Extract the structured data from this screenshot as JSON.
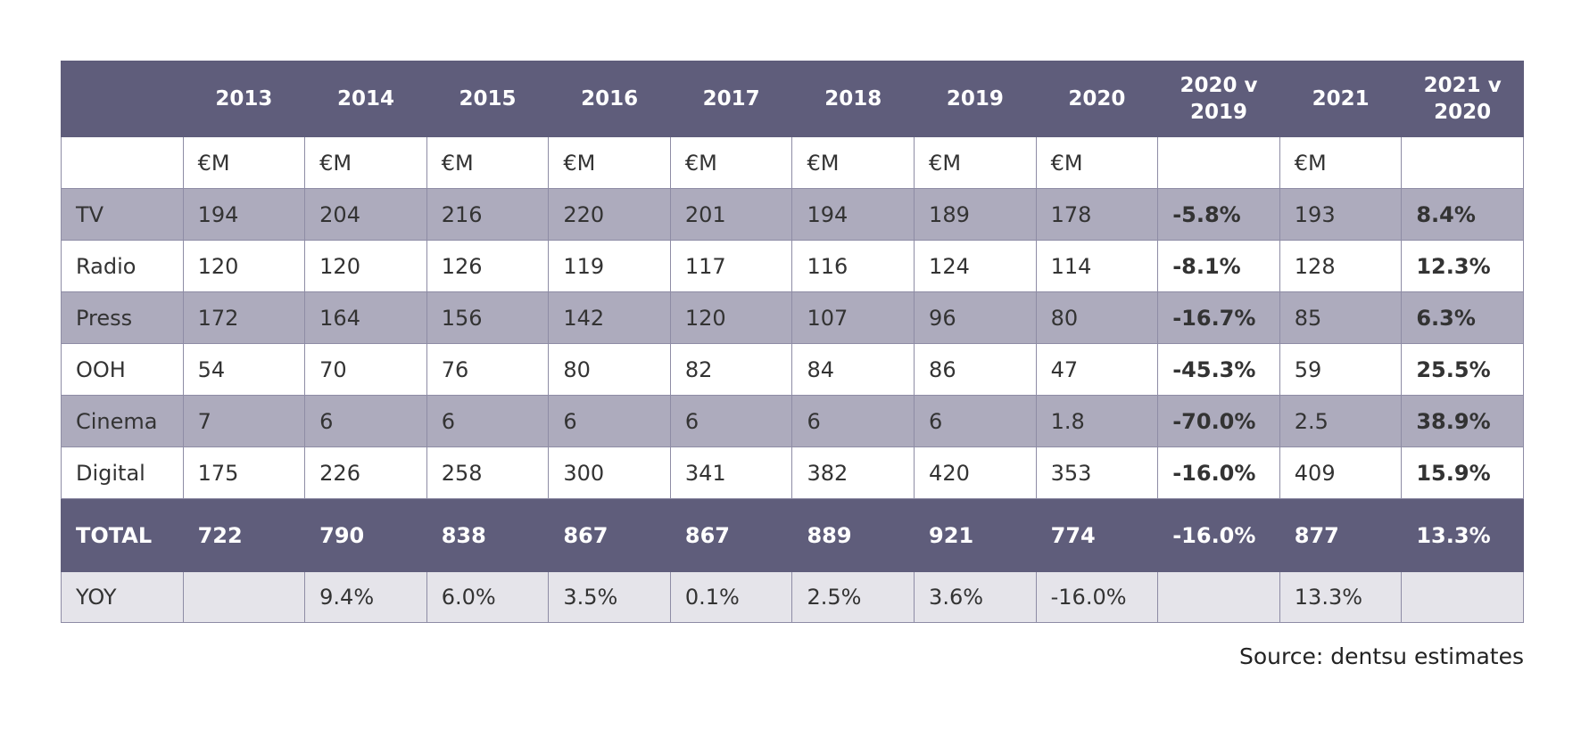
{
  "table": {
    "header": [
      "2013",
      "2014",
      "2015",
      "2016",
      "2017",
      "2018",
      "2019",
      "2020",
      "2020 v 2019",
      "2021",
      "2021 v 2020"
    ],
    "units": [
      "€M",
      "€M",
      "€M",
      "€M",
      "€M",
      "€M",
      "€M",
      "€M",
      null,
      "€M",
      null
    ],
    "rows": [
      {
        "label": "TV",
        "values": [
          "194",
          "204",
          "216",
          "220",
          "201",
          "194",
          "189",
          "178",
          "-5.8%",
          "193",
          "8.4%"
        ]
      },
      {
        "label": "Radio",
        "values": [
          "120",
          "120",
          "126",
          "119",
          "117",
          "116",
          "124",
          "114",
          "-8.1%",
          "128",
          "12.3%"
        ]
      },
      {
        "label": "Press",
        "values": [
          "172",
          "164",
          "156",
          "142",
          "120",
          "107",
          "96",
          "80",
          "-16.7%",
          "85",
          "6.3%"
        ]
      },
      {
        "label": "OOH",
        "values": [
          "54",
          "70",
          "76",
          "80",
          "82",
          "84",
          "86",
          "47",
          "-45.3%",
          "59",
          "25.5%"
        ]
      },
      {
        "label": "Cinema",
        "values": [
          "7",
          "6",
          "6",
          "6",
          "6",
          "6",
          "6",
          "1.8",
          "-70.0%",
          "2.5",
          "38.9%"
        ]
      },
      {
        "label": "Digital",
        "values": [
          "175",
          "226",
          "258",
          "300",
          "341",
          "382",
          "420",
          "353",
          "-16.0%",
          "409",
          "15.9%"
        ]
      }
    ],
    "total": {
      "label": "TOTAL",
      "values": [
        "722",
        "790",
        "838",
        "867",
        "867",
        "889",
        "921",
        "774",
        "-16.0%",
        "877",
        "13.3%"
      ]
    },
    "yoy": {
      "label": "YOY",
      "values": [
        null,
        "9.4%",
        "6.0%",
        "3.5%",
        "0.1%",
        "2.5%",
        "3.6%",
        "-16.0%",
        null,
        "13.3%",
        null
      ]
    }
  },
  "source": "Source: dentsu estimates"
}
